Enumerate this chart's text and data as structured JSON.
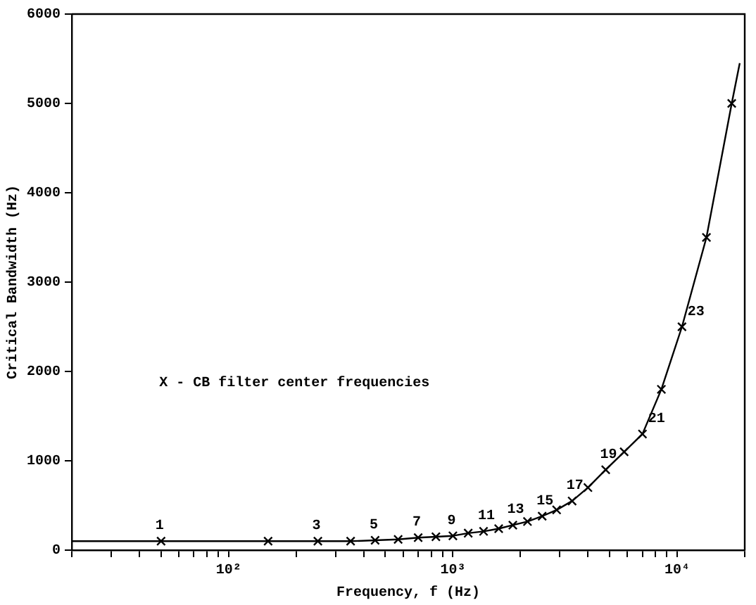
{
  "chart_data": {
    "type": "scatter",
    "xlabel": "Frequency, f (Hz)",
    "ylabel": "Critical Bandwidth (Hz)",
    "log": "x",
    "xlim": [
      20,
      20000
    ],
    "ylim": [
      0,
      6000
    ],
    "xticks": [
      {
        "value": 20,
        "label": null
      },
      {
        "value": 30,
        "label": null
      },
      {
        "value": 40,
        "label": null
      },
      {
        "value": 50,
        "label": null
      },
      {
        "value": 60,
        "label": null
      },
      {
        "value": 70,
        "label": null
      },
      {
        "value": 80,
        "label": null
      },
      {
        "value": 90,
        "label": null
      },
      {
        "value": 100,
        "label": "10²"
      },
      {
        "value": 200,
        "label": null
      },
      {
        "value": 300,
        "label": null
      },
      {
        "value": 400,
        "label": null
      },
      {
        "value": 500,
        "label": null
      },
      {
        "value": 600,
        "label": null
      },
      {
        "value": 700,
        "label": null
      },
      {
        "value": 800,
        "label": null
      },
      {
        "value": 900,
        "label": null
      },
      {
        "value": 1000,
        "label": "10³"
      },
      {
        "value": 2000,
        "label": null
      },
      {
        "value": 3000,
        "label": null
      },
      {
        "value": 4000,
        "label": null
      },
      {
        "value": 5000,
        "label": null
      },
      {
        "value": 6000,
        "label": null
      },
      {
        "value": 7000,
        "label": null
      },
      {
        "value": 8000,
        "label": null
      },
      {
        "value": 9000,
        "label": null
      },
      {
        "value": 10000,
        "label": "10⁴"
      },
      {
        "value": 20000,
        "label": null
      }
    ],
    "yticks": [
      0,
      1000,
      2000,
      3000,
      4000,
      5000,
      6000
    ],
    "grid": false,
    "legend": false,
    "series": [
      {
        "type": "line",
        "color": "#000000",
        "marker": "none",
        "line_style": "solid",
        "x": [
          20,
          50,
          150,
          250,
          350,
          450,
          570,
          700,
          840,
          1000,
          1170,
          1370,
          1600,
          1850,
          2150,
          2500,
          2900,
          3400,
          4000,
          4800,
          5800,
          7000,
          8500,
          10500,
          13500,
          17500,
          19000
        ],
        "values": [
          100,
          100,
          100,
          100,
          100,
          110,
          120,
          140,
          150,
          160,
          190,
          210,
          240,
          280,
          320,
          380,
          450,
          550,
          700,
          900,
          1100,
          1300,
          1800,
          2500,
          3500,
          5000,
          5450
        ]
      },
      {
        "type": "scatter",
        "color": "#000000",
        "marker": "cross",
        "x": [
          50,
          150,
          250,
          350,
          450,
          570,
          700,
          840,
          1000,
          1170,
          1370,
          1600,
          1850,
          2150,
          2500,
          2900,
          3400,
          4000,
          4800,
          5800,
          7000,
          8500,
          10500,
          13500,
          17500
        ],
        "values": [
          100,
          100,
          100,
          100,
          110,
          120,
          140,
          150,
          160,
          190,
          210,
          240,
          280,
          320,
          380,
          450,
          550,
          700,
          900,
          1100,
          1300,
          1800,
          2500,
          3500,
          5000
        ]
      }
    ],
    "annotations": [
      "X - CB filter center frequencies",
      {
        "text": "1",
        "x": 50,
        "y": 100
      },
      {
        "text": "3",
        "x": 250,
        "y": 100
      },
      {
        "text": "5",
        "x": 450,
        "y": 110
      },
      {
        "text": "7",
        "x": 700,
        "y": 140
      },
      {
        "text": "9",
        "x": 1000,
        "y": 160
      },
      {
        "text": "11",
        "x": 1370,
        "y": 210
      },
      {
        "text": "13",
        "x": 1850,
        "y": 280
      },
      {
        "text": "15",
        "x": 2500,
        "y": 380
      },
      {
        "text": "17",
        "x": 3400,
        "y": 550
      },
      {
        "text": "19",
        "x": 4800,
        "y": 900
      },
      {
        "text": "21",
        "x": 7000,
        "y": 1300
      },
      {
        "text": "23",
        "x": 10500,
        "y": 2500
      }
    ]
  }
}
